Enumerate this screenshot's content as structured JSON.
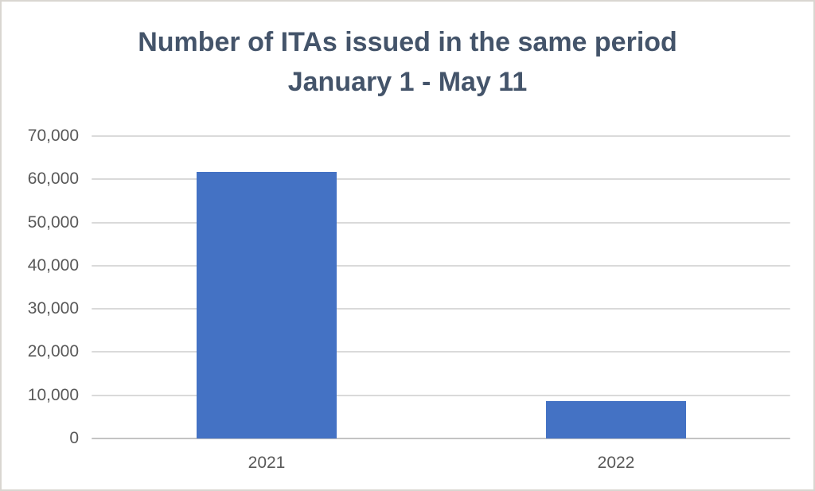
{
  "chart_data": {
    "type": "bar",
    "title_lines": [
      "Number of ITAs issued in the same period",
      "January 1 - May 11"
    ],
    "categories": [
      "2021",
      "2022"
    ],
    "values": [
      61700,
      8700
    ],
    "ylim": [
      0,
      70000
    ],
    "y_ticks": [
      {
        "value": 70000,
        "label": "70,000"
      },
      {
        "value": 60000,
        "label": "60,000"
      },
      {
        "value": 50000,
        "label": "50,000"
      },
      {
        "value": 40000,
        "label": "40,000"
      },
      {
        "value": 30000,
        "label": "30,000"
      },
      {
        "value": 20000,
        "label": "20,000"
      },
      {
        "value": 10000,
        "label": "10,000"
      },
      {
        "value": 0,
        "label": "0"
      }
    ],
    "grid": true,
    "legend": "none",
    "xlabel": "",
    "ylabel": "",
    "bar_color": "#4472C4",
    "title_color": "#44546A",
    "tick_label_color": "#595959",
    "gridline_color": "#DADADA",
    "axis_line_color": "#C3C3C3",
    "background_color": "#FFFFFF",
    "frame_border_color": "#D9D6D1"
  }
}
